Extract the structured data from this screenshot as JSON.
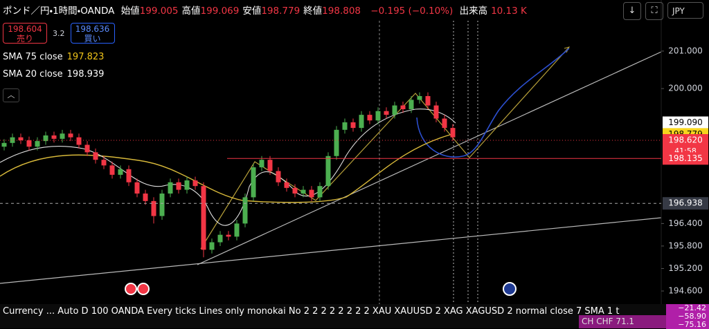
{
  "header": {
    "symbol": "ポンド／円・1時間・OANDA",
    "ohlc": [
      {
        "label": "始値",
        "value": "199.005"
      },
      {
        "label": "高値",
        "value": "199.069"
      },
      {
        "label": "安値",
        "value": "198.779"
      },
      {
        "label": "終値",
        "value": "198.808"
      }
    ],
    "change": "−0.195 (−0.10%)",
    "volume_label": "出来高",
    "volume": "10.13 K"
  },
  "trade": {
    "sell_price": "198.604",
    "sell_label": "売り",
    "spread": "3.2",
    "buy_price": "198.636",
    "buy_label": "買い"
  },
  "indicators": [
    {
      "name": "SMA 75 close",
      "value": "197.823",
      "color": "#f0c419"
    },
    {
      "name": "SMA 20 close",
      "value": "198.939",
      "color": "#ffffff"
    }
  ],
  "currency": "JPY",
  "chart_data": {
    "type": "candlestick",
    "up_color": "#4caf50",
    "down_color": "#f23645",
    "open": [
      198.45,
      198.55,
      198.7,
      198.62,
      198.45,
      198.6,
      198.75,
      198.66,
      198.8,
      198.7,
      198.5,
      198.3,
      198.1,
      197.95,
      197.7,
      197.85,
      197.5,
      197.2,
      197.0,
      196.6,
      197.2,
      197.5,
      197.3,
      197.55,
      197.4,
      195.7,
      195.9,
      196.1,
      196.05,
      196.4,
      197.1,
      197.9,
      198.1,
      197.8,
      197.5,
      197.35,
      197.2,
      197.3,
      197.1,
      197.4,
      198.2,
      198.9,
      199.1,
      198.95,
      199.3,
      199.15,
      199.4,
      199.3,
      199.55,
      199.45,
      199.7,
      199.8,
      199.55,
      199.2,
      198.95
    ],
    "high": [
      198.65,
      198.8,
      198.8,
      198.72,
      198.7,
      198.85,
      198.85,
      198.9,
      198.9,
      198.8,
      198.6,
      198.4,
      198.2,
      198.05,
      197.95,
      197.95,
      197.6,
      197.3,
      197.1,
      197.3,
      197.6,
      197.6,
      197.65,
      197.65,
      197.5,
      196.0,
      196.2,
      196.2,
      196.5,
      197.2,
      198.0,
      198.2,
      198.2,
      197.9,
      197.6,
      197.45,
      197.4,
      197.4,
      197.5,
      198.3,
      199.0,
      199.2,
      199.2,
      199.4,
      199.4,
      199.5,
      199.5,
      199.65,
      199.65,
      199.8,
      199.9,
      199.9,
      199.65,
      199.3,
      199.05
    ],
    "low": [
      198.35,
      198.45,
      198.52,
      198.35,
      198.35,
      198.5,
      198.56,
      198.56,
      198.6,
      198.4,
      198.2,
      198.0,
      197.85,
      197.6,
      197.6,
      197.4,
      197.1,
      196.9,
      196.4,
      196.5,
      197.1,
      197.2,
      197.2,
      197.3,
      195.5,
      195.6,
      195.8,
      195.95,
      195.95,
      196.3,
      197.0,
      197.8,
      197.7,
      197.4,
      197.25,
      197.1,
      197.1,
      197.0,
      197.0,
      197.3,
      198.1,
      198.8,
      198.85,
      198.85,
      199.05,
      199.05,
      199.2,
      199.2,
      199.35,
      199.35,
      199.6,
      199.45,
      199.1,
      198.85,
      198.6
    ],
    "close": [
      198.55,
      198.7,
      198.62,
      198.45,
      198.6,
      198.75,
      198.66,
      198.8,
      198.7,
      198.5,
      198.3,
      198.1,
      197.95,
      197.7,
      197.85,
      197.5,
      197.2,
      197.0,
      196.6,
      197.2,
      197.5,
      197.3,
      197.55,
      197.4,
      195.7,
      195.9,
      196.1,
      196.05,
      196.4,
      197.1,
      197.9,
      198.1,
      197.8,
      197.5,
      197.35,
      197.2,
      197.3,
      197.1,
      197.4,
      198.2,
      198.9,
      199.1,
      198.95,
      199.3,
      199.15,
      199.4,
      199.3,
      199.55,
      199.45,
      199.7,
      199.8,
      199.55,
      199.2,
      198.95,
      198.7
    ],
    "ylim": [
      194.25,
      201.81
    ],
    "yticks": [
      {
        "value": 194.6,
        "label": "194.600"
      },
      {
        "value": 195.2,
        "label": "195.200"
      },
      {
        "value": 195.8,
        "label": "195.800"
      },
      {
        "value": 196.4,
        "label": "196.400"
      },
      {
        "value": 200,
        "label": "200.000"
      },
      {
        "value": 201,
        "label": "201.000"
      }
    ],
    "price_labels": [
      {
        "value": 199.09,
        "label": "199.090",
        "color": "#ffffff",
        "text_color": "#000000"
      },
      {
        "value": 198.779,
        "label": "198.779",
        "color": "#f7d51d",
        "text_color": "#000000"
      },
      {
        "value": 198.62,
        "label": "198.620",
        "color": "#f23645",
        "text_color": "#ffffff",
        "line": "dotted"
      },
      {
        "value": 198.135,
        "label": "198.135",
        "color": "#f23645",
        "text_color": "#ffffff",
        "line": "solid"
      },
      {
        "value": 196.938,
        "label": "196.938",
        "color": "#363a45",
        "text_color": "#ffffff",
        "line": "dashed"
      }
    ],
    "countdown": "41:58"
  },
  "footer": {
    "settings": "Currency ...  Auto D 100 OANDA Every ticks Lines only monokai No 2 2 2 2 2 2 2 2 XAU XAUUSD 2 XAG XAGUSD 2 normal close 7 SMA 1 t",
    "side_values": [
      "−21.42",
      "−58.90",
      "−75.16"
    ],
    "side_text": "CH   CHF    71.1"
  }
}
